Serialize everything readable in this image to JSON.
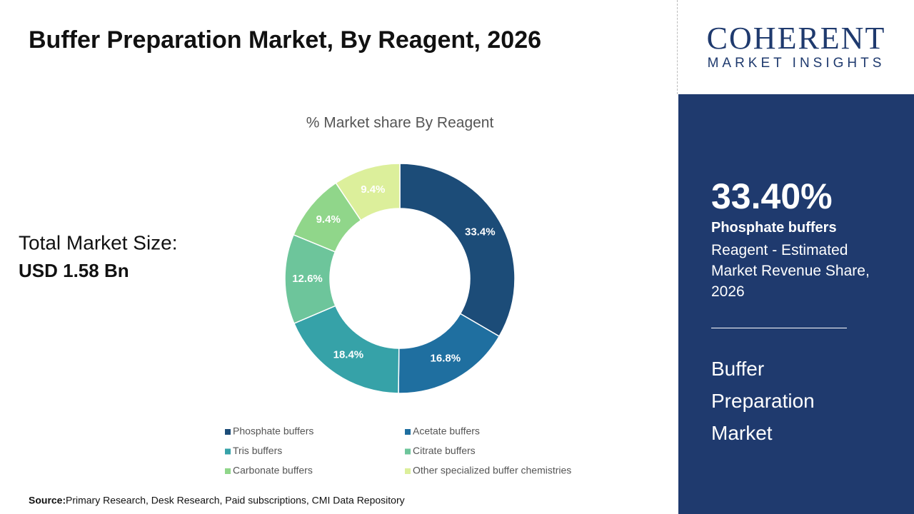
{
  "header": {
    "title": "Buffer Preparation Market, By Reagent, 2026"
  },
  "logo": {
    "name": "COHERENT",
    "tagline": "MARKET INSIGHTS"
  },
  "summary": {
    "label": "Total Market Size:",
    "value": "USD 1.58 Bn"
  },
  "sidebar": {
    "highlight": "33.40%",
    "segment": "Phosphate buffers",
    "description": "Reagent - Estimated Market Revenue Share, 2026",
    "market": "Buffer Preparation Market"
  },
  "source": {
    "label": "Source:",
    "text": "Primary Research, Desk Research, Paid subscriptions, CMI Data Repository"
  },
  "chart_data": {
    "type": "donut",
    "title": "% Market share By Reagent",
    "categories": [
      "Phosphate buffers",
      "Acetate buffers",
      "Tris buffers",
      "Citrate buffers",
      "Carbonate buffers",
      "Other specialized buffer chemistries"
    ],
    "values": [
      33.4,
      16.8,
      18.4,
      12.6,
      9.4,
      9.4
    ],
    "value_labels": [
      "33.4%",
      "16.8%",
      "18.4%",
      "12.6%",
      "9.4%",
      "9.4%"
    ],
    "colors": [
      "#1c4c78",
      "#1f6fa0",
      "#36a2a8",
      "#6dc59b",
      "#90d68a",
      "#dcef9b"
    ],
    "legend": "bottom"
  }
}
